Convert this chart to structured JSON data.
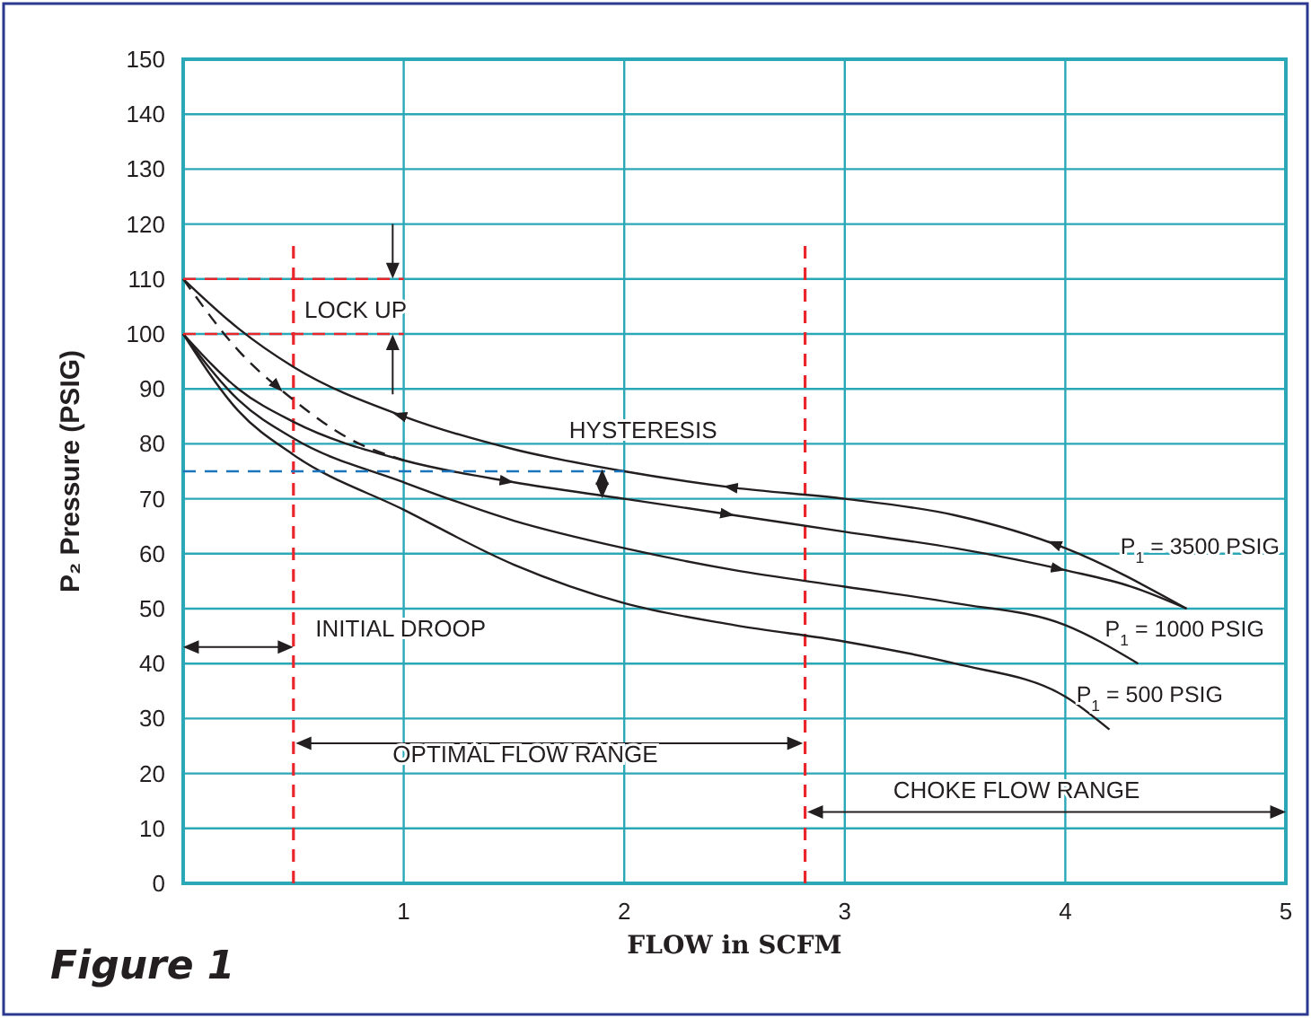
{
  "chart_data": {
    "type": "line",
    "xlabel": "FLOW in SCFM",
    "ylabel": "P₂ Pressure (PSIG)",
    "xlim": [
      0,
      5
    ],
    "ylim": [
      0,
      150
    ],
    "xticks": [
      1,
      2,
      3,
      4,
      5
    ],
    "yticks": [
      0,
      10,
      20,
      30,
      40,
      50,
      60,
      70,
      80,
      90,
      100,
      110,
      120,
      130,
      140,
      150
    ],
    "grid": true,
    "marker": "none",
    "line_style": "solid",
    "series": [
      {
        "name": "P$_{1}$ = 3500 PSIG",
        "color": "#231f20",
        "x": [
          0,
          0.25,
          0.5,
          1,
          1.5,
          2,
          2.5,
          3,
          3.5,
          4,
          4.55
        ],
        "values": [
          110,
          101,
          94,
          85,
          79,
          75,
          72,
          70,
          67,
          61,
          50
        ]
      },
      {
        "color": "#231f20",
        "x": [
          0,
          0.25,
          0.5,
          1,
          1.5,
          2,
          2.5,
          3,
          3.5,
          4,
          4.3,
          4.55
        ],
        "values": [
          100,
          90,
          84,
          77,
          73,
          70,
          67,
          64,
          61,
          57,
          54,
          50
        ]
      },
      {
        "name": "P$_{1}$ = 1000 PSIG",
        "color": "#231f20",
        "x": [
          0,
          0.25,
          0.5,
          1,
          1.5,
          2,
          2.5,
          3,
          3.5,
          4,
          4.33
        ],
        "values": [
          100,
          88,
          81,
          73,
          66,
          61,
          57,
          54,
          51,
          47,
          40
        ]
      },
      {
        "name": "P$_{1}$ = 500 PSIG",
        "color": "#231f20",
        "x": [
          0,
          0.25,
          0.5,
          1,
          1.5,
          2,
          2.5,
          3,
          3.5,
          4,
          4.2
        ],
        "values": [
          100,
          86,
          78,
          68,
          58,
          51,
          47,
          44,
          40,
          34,
          28
        ]
      },
      {
        "color": "#231f20",
        "line_style": "dashed",
        "x": [
          0,
          0.25,
          0.5,
          0.75,
          1
        ],
        "values": [
          110,
          97,
          88,
          81,
          77
        ]
      },
      {
        "color": "#e8262b",
        "line_style": "dashed",
        "x": [
          0,
          1
        ],
        "values": [
          110,
          110
        ]
      },
      {
        "color": "#e8262b",
        "line_style": "dashed",
        "x": [
          0,
          1
        ],
        "values": [
          100,
          100
        ]
      },
      {
        "color": "#1a75bc",
        "line_style": "dashed",
        "x": [
          0,
          2
        ],
        "values": [
          75,
          75
        ]
      }
    ],
    "ref_lines": [
      {
        "axis": "x",
        "value": 0.5,
        "color": "#e8262b",
        "line_style": "dashed"
      },
      {
        "axis": "x",
        "value": 2.82,
        "color": "#e8262b",
        "line_style": "dashed"
      }
    ],
    "annotations": [
      "LOCK UP",
      "HYSTERESIS",
      "INITIAL DROOP",
      "OPTIMAL FLOW RANGE",
      "CHOKE FLOW RANGE",
      "Figure 1"
    ]
  }
}
